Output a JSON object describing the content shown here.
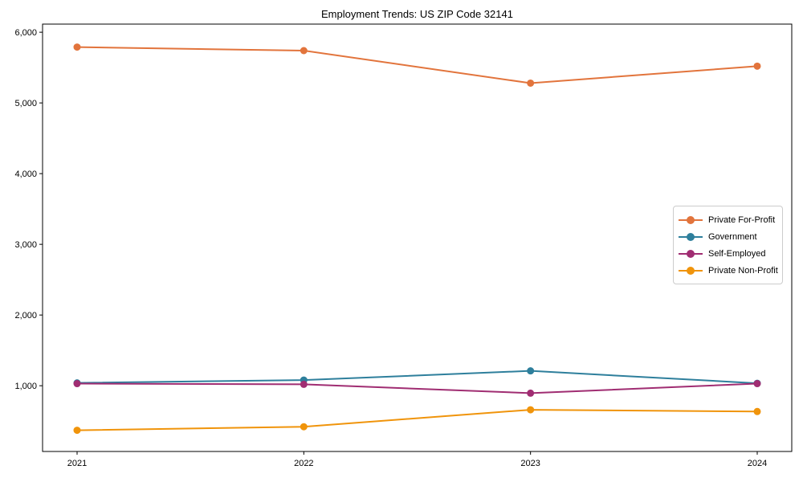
{
  "figure": {
    "background": "#ffffff",
    "axis_color": "#000000",
    "text_color": "#000000",
    "legend_border_color": "#cccccc"
  },
  "chart_data": {
    "type": "line",
    "title": "Employment Trends: US ZIP Code 32141",
    "xlabel": "",
    "ylabel": "",
    "categories": [
      "2021",
      "2022",
      "2023",
      "2024"
    ],
    "series": [
      {
        "name": "Private For-Profit",
        "color": "#e2743c",
        "values": [
          5790,
          5740,
          5280,
          5520
        ]
      },
      {
        "name": "Government",
        "color": "#2e7f9c",
        "values": [
          1040,
          1080,
          1210,
          1035
        ]
      },
      {
        "name": "Self-Employed",
        "color": "#a02d72",
        "values": [
          1030,
          1020,
          895,
          1030
        ]
      },
      {
        "name": "Private Non-Profit",
        "color": "#f0940b",
        "values": [
          370,
          420,
          660,
          635
        ]
      }
    ],
    "ylim": [
      70,
      6115
    ],
    "yticks": [
      1000,
      2000,
      3000,
      4000,
      5000,
      6000
    ],
    "ytick_labels": [
      "1,000",
      "2,000",
      "3,000",
      "4,000",
      "5,000",
      "6,000"
    ],
    "grid": false,
    "legend_position": "center-right",
    "marker": "circle",
    "line_width": 2,
    "marker_radius": 4.5
  }
}
